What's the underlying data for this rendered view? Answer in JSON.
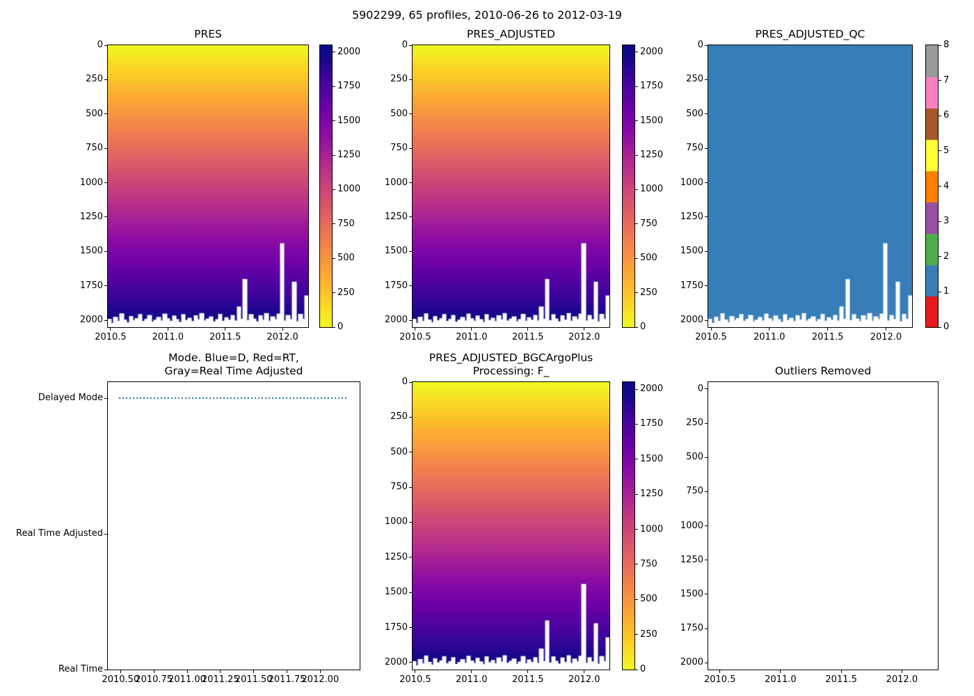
{
  "figure": {
    "title": "5902299, 65 profiles, 2010-06-26 to 2012-03-19"
  },
  "colors": {
    "background": "#ffffff",
    "axis": "#000000",
    "plasma_reversed_stops": [
      "#f0f921",
      "#fcce25",
      "#fca636",
      "#f2844b",
      "#e16462",
      "#cc4778",
      "#b12a90",
      "#8f0da4",
      "#6a00a8",
      "#41049d",
      "#0d0887"
    ],
    "qc_palette": [
      "#e41a1c",
      "#377eb8",
      "#4daf4a",
      "#984ea3",
      "#ff7f00",
      "#ffff33",
      "#a65628",
      "#f781bf",
      "#999999"
    ],
    "qc_fill": "#377eb8",
    "mode_line": "#1f77b4"
  },
  "profiles": {
    "count": 65,
    "time_start_decimal_year": 2010.49,
    "time_end_decimal_year": 2012.21,
    "max_depths": [
      1990,
      2020,
      1975,
      2005,
      1950,
      1995,
      2015,
      1970,
      2000,
      1985,
      1955,
      2005,
      1990,
      1962,
      2010,
      1996,
      1976,
      2002,
      1952,
      1986,
      2004,
      1966,
      1992,
      2012,
      1956,
      1998,
      1982,
      2006,
      1964,
      1994,
      1948,
      2002,
      1988,
      1972,
      2008,
      1992,
      1954,
      2004,
      1978,
      1996,
      1962,
      2002,
      1900,
      1990,
      1700,
      2000,
      1956,
      1988,
      2008,
      1964,
      1996,
      1948,
      2004,
      1972,
      1992,
      1952,
      1440,
      2002,
      1962,
      1992,
      1720,
      2008,
      1954,
      1990,
      1820
    ]
  },
  "chart_data": [
    {
      "id": "pres",
      "type": "heatmap",
      "title": "PRES",
      "value_description": "Pressure (dbar), equals depth coordinate: 0 at surface to ~2000 at profile bottom",
      "colormap": "plasma_r",
      "xlim": [
        2010.476,
        2012.224
      ],
      "ylim": [
        0,
        2050
      ],
      "x_ticks": {
        "values": [
          2010.5,
          2011.0,
          2011.5,
          2012.0
        ],
        "labels": [
          "2010.5",
          "2011.0",
          "2011.5",
          "2012.0"
        ]
      },
      "y_ticks": {
        "values": [
          0,
          250,
          500,
          750,
          1000,
          1250,
          1500,
          1750,
          2000
        ],
        "labels": [
          "0",
          "250",
          "500",
          "750",
          "1000",
          "1250",
          "1500",
          "1750",
          "2000"
        ]
      },
      "colorbar": {
        "type": "continuous",
        "vmin": 0,
        "vmax": 2050,
        "ticks": [
          0,
          250,
          500,
          750,
          1000,
          1250,
          1500,
          1750,
          2000
        ]
      }
    },
    {
      "id": "pres_adjusted",
      "type": "heatmap",
      "title": "PRES_ADJUSTED",
      "value_description": "Adjusted pressure (dbar), 0 at surface to ~2000 at profile bottom",
      "colormap": "plasma_r",
      "xlim": [
        2010.476,
        2012.224
      ],
      "ylim": [
        0,
        2050
      ],
      "x_ticks": {
        "values": [
          2010.5,
          2011.0,
          2011.5,
          2012.0
        ],
        "labels": [
          "2010.5",
          "2011.0",
          "2011.5",
          "2012.0"
        ]
      },
      "y_ticks": {
        "values": [
          0,
          250,
          500,
          750,
          1000,
          1250,
          1500,
          1750,
          2000
        ],
        "labels": [
          "0",
          "250",
          "500",
          "750",
          "1000",
          "1250",
          "1500",
          "1750",
          "2000"
        ]
      },
      "colorbar": {
        "type": "continuous",
        "vmin": 0,
        "vmax": 2050,
        "ticks": [
          0,
          250,
          500,
          750,
          1000,
          1250,
          1500,
          1750,
          2000
        ]
      }
    },
    {
      "id": "pres_adjusted_qc",
      "type": "heatmap",
      "title": "PRES_ADJUSTED_QC",
      "value_description": "QC flag, constant value 1 (good data) for all profiles",
      "constant_value": 1,
      "xlim": [
        2010.476,
        2012.224
      ],
      "ylim": [
        0,
        2050
      ],
      "x_ticks": {
        "values": [
          2010.5,
          2011.0,
          2011.5,
          2012.0
        ],
        "labels": [
          "2010.5",
          "2011.0",
          "2011.5",
          "2012.0"
        ]
      },
      "y_ticks": {
        "values": [
          0,
          250,
          500,
          750,
          1000,
          1250,
          1500,
          1750,
          2000
        ],
        "labels": [
          "0",
          "250",
          "500",
          "750",
          "1000",
          "1250",
          "1500",
          "1750",
          "2000"
        ]
      },
      "colorbar": {
        "type": "discrete",
        "vmin": 0,
        "vmax": 8,
        "ticks": [
          0,
          1,
          2,
          3,
          4,
          5,
          6,
          7,
          8
        ],
        "tick_labels": [
          "0",
          "1",
          "2",
          "3",
          "4",
          "5",
          "6",
          "7",
          "8"
        ]
      }
    },
    {
      "id": "mode",
      "type": "line",
      "title": "Mode. Blue=D, Red=RT,\nGray=Real Time Adjusted",
      "y_categories": [
        {
          "label": "Delayed Mode",
          "value": 2
        },
        {
          "label": "Real Time Adjusted",
          "value": 1
        },
        {
          "label": "Real Time",
          "value": 0
        }
      ],
      "series": [
        {
          "name": "mode",
          "style": "dotted",
          "color": "#1f77b4",
          "y_label": "Delayed Mode",
          "y_value": 2,
          "x_start": 2010.49,
          "x_end": 2012.21
        }
      ],
      "xlim": [
        2010.404,
        2012.296
      ],
      "ylim": [
        0,
        2.12
      ],
      "x_ticks": {
        "values": [
          2010.5,
          2010.75,
          2011.0,
          2011.25,
          2011.5,
          2011.75,
          2012.0
        ],
        "labels": [
          "2010.50",
          "2010.75",
          "2011.00",
          "2011.25",
          "2011.50",
          "2011.75",
          "2012.00"
        ]
      }
    },
    {
      "id": "pres_adjusted_bgc",
      "type": "heatmap",
      "title": "PRES_ADJUSTED_BGCArgoPlus\nProcessing: F_",
      "value_description": "Adjusted pressure (dbar), 0 at surface to ~2000 at profile bottom",
      "colormap": "plasma_r",
      "xlim": [
        2010.476,
        2012.224
      ],
      "ylim": [
        0,
        2050
      ],
      "x_ticks": {
        "values": [
          2010.5,
          2011.0,
          2011.5,
          2012.0
        ],
        "labels": [
          "2010.5",
          "2011.0",
          "2011.5",
          "2012.0"
        ]
      },
      "y_ticks": {
        "values": [
          0,
          250,
          500,
          750,
          1000,
          1250,
          1500,
          1750,
          2000
        ],
        "labels": [
          "0",
          "250",
          "500",
          "750",
          "1000",
          "1250",
          "1500",
          "1750",
          "2000"
        ]
      },
      "colorbar": {
        "type": "continuous",
        "vmin": 0,
        "vmax": 2050,
        "ticks": [
          0,
          250,
          500,
          750,
          1000,
          1250,
          1500,
          1750,
          2000
        ]
      }
    },
    {
      "id": "outliers_removed",
      "type": "empty",
      "title": "Outliers Removed",
      "xlim": [
        2010.404,
        2012.296
      ],
      "ylim": [
        -50,
        2050
      ],
      "x_ticks": {
        "values": [
          2010.5,
          2011.0,
          2011.5,
          2012.0
        ],
        "labels": [
          "2010.5",
          "2011.0",
          "2011.5",
          "2012.0"
        ]
      },
      "y_ticks": {
        "values": [
          0,
          250,
          500,
          750,
          1000,
          1250,
          1500,
          1750,
          2000
        ],
        "labels": [
          "0",
          "250",
          "500",
          "750",
          "1000",
          "1250",
          "1500",
          "1750",
          "2000"
        ]
      }
    }
  ]
}
